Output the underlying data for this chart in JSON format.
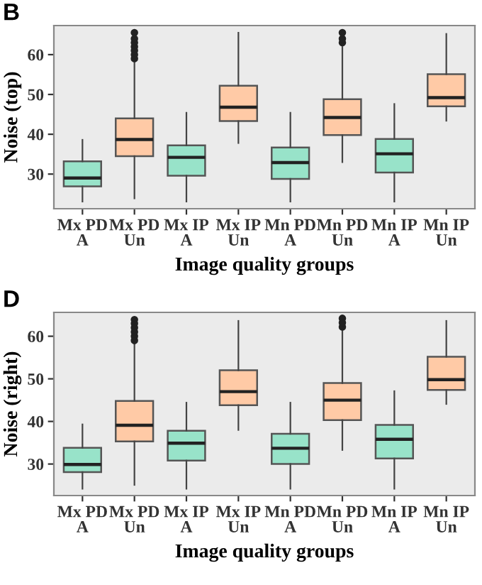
{
  "chart_data": [
    {
      "type": "box",
      "title": "B",
      "xlabel": "Image quality groups",
      "ylabel": "Noise (top)",
      "categories": [
        "Mx PD\nA",
        "Mx PD\nUn",
        "Mx IP\nA",
        "Mx IP\nUn",
        "Mn PD\nA",
        "Mn PD\nUn",
        "Mn IP\nA",
        "Mn IP\nUn"
      ],
      "colors": [
        "#98e3c9",
        "#ffcaa6",
        "#98e3c9",
        "#ffcaa6",
        "#98e3c9",
        "#ffcaa6",
        "#98e3c9",
        "#ffcaa6"
      ],
      "boxes": [
        {
          "low": 23.1,
          "q1": 26.9,
          "median": 29.0,
          "q3": 33.2,
          "high": 38.6
        },
        {
          "low": 23.9,
          "q1": 34.5,
          "median": 38.7,
          "q3": 44.0,
          "high": 58.3,
          "outliers": [
            59,
            60,
            61,
            62,
            63,
            64,
            65.5
          ]
        },
        {
          "low": 23.1,
          "q1": 29.6,
          "median": 34.2,
          "q3": 37.2,
          "high": 45.4
        },
        {
          "low": 37.8,
          "q1": 43.3,
          "median": 46.8,
          "q3": 52.2,
          "high": 65.5
        },
        {
          "low": 23.1,
          "q1": 28.8,
          "median": 32.9,
          "q3": 36.7,
          "high": 45.4
        },
        {
          "low": 33.0,
          "q1": 39.8,
          "median": 44.2,
          "q3": 48.8,
          "high": 61.9,
          "outliers": [
            63,
            64,
            65.5
          ]
        },
        {
          "low": 23.1,
          "q1": 30.4,
          "median": 35.1,
          "q3": 38.8,
          "high": 47.6
        },
        {
          "low": 43.4,
          "q1": 47.0,
          "median": 49.2,
          "q3": 55.1,
          "high": 65.2
        }
      ],
      "ylim": [
        21.3,
        67.3
      ],
      "yticks": [
        30,
        40,
        50,
        60
      ],
      "grid": false,
      "legend": false
    },
    {
      "type": "box",
      "title": "D",
      "xlabel": "Image quality groups",
      "ylabel": "Noise (right)",
      "categories": [
        "Mx PD\nA",
        "Mx PD\nUn",
        "Mx IP\nA",
        "Mx IP\nUn",
        "Mn PD\nA",
        "Mn PD\nUn",
        "Mn IP\nA",
        "Mn IP\nUn"
      ],
      "colors": [
        "#98e3c9",
        "#ffcaa6",
        "#98e3c9",
        "#ffcaa6",
        "#98e3c9",
        "#ffcaa6",
        "#98e3c9",
        "#ffcaa6"
      ],
      "boxes": [
        {
          "low": 24.2,
          "q1": 28.1,
          "median": 29.9,
          "q3": 33.8,
          "high": 39.3
        },
        {
          "low": 25.1,
          "q1": 35.3,
          "median": 39.1,
          "q3": 44.8,
          "high": 58.3,
          "outliers": [
            59,
            60,
            61,
            62,
            63,
            63.9
          ]
        },
        {
          "low": 24.2,
          "q1": 30.8,
          "median": 34.9,
          "q3": 37.8,
          "high": 44.4
        },
        {
          "low": 38.0,
          "q1": 43.8,
          "median": 47.0,
          "q3": 52.0,
          "high": 63.6
        },
        {
          "low": 24.2,
          "q1": 30.0,
          "median": 33.7,
          "q3": 37.1,
          "high": 44.4
        },
        {
          "low": 33.3,
          "q1": 40.3,
          "median": 45.0,
          "q3": 49.0,
          "high": 61.7,
          "outliers": [
            62.2,
            63.2,
            64.2
          ]
        },
        {
          "low": 24.2,
          "q1": 31.3,
          "median": 35.8,
          "q3": 39.2,
          "high": 47.1
        },
        {
          "low": 44.1,
          "q1": 47.4,
          "median": 49.8,
          "q3": 55.2,
          "high": 63.6
        }
      ],
      "ylim": [
        22.6,
        65.6
      ],
      "yticks": [
        30,
        40,
        50,
        60
      ],
      "grid": false,
      "legend": false
    }
  ]
}
